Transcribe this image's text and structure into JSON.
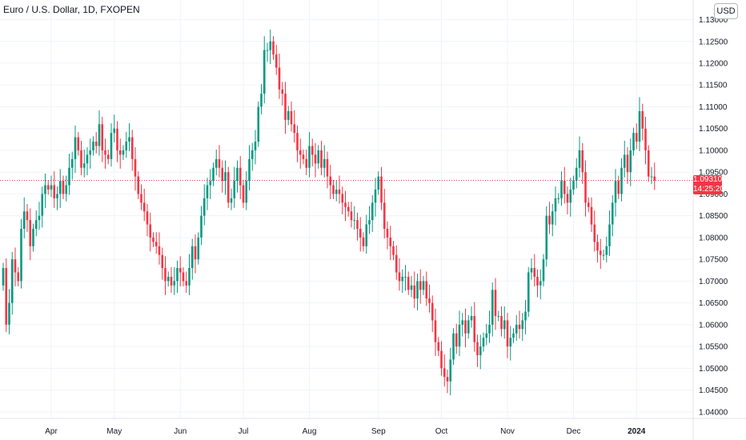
{
  "header": {
    "title": "Euro / U.S. Dollar, 1D, FXOPEN"
  },
  "currency_button": {
    "label": "USD"
  },
  "last_price": {
    "value": "1.09310",
    "countdown": "14:25:20",
    "color": "#f23645"
  },
  "colors": {
    "up": "#089981",
    "down": "#f23645",
    "grid": "#f0f3fa",
    "text": "#131722"
  },
  "chart_data": {
    "type": "candlestick",
    "title": "Euro / U.S. Dollar, 1D, FXOPEN",
    "ylim": [
      1.0385,
      1.1345
    ],
    "y_ticks": [
      "1.04000",
      "1.04500",
      "1.05000",
      "1.05500",
      "1.06000",
      "1.06500",
      "1.07000",
      "1.07500",
      "1.08000",
      "1.08500",
      "1.09000",
      "1.09500",
      "1.10000",
      "1.10500",
      "1.11000",
      "1.11500",
      "1.12000",
      "1.12500",
      "1.13000"
    ],
    "x_ticks": [
      {
        "label": "Apr",
        "day": 16
      },
      {
        "label": "May",
        "day": 37
      },
      {
        "label": "Jun",
        "day": 59
      },
      {
        "label": "Jul",
        "day": 80
      },
      {
        "label": "Aug",
        "day": 102
      },
      {
        "label": "Sep",
        "day": 125
      },
      {
        "label": "Oct",
        "day": 146
      },
      {
        "label": "Nov",
        "day": 168
      },
      {
        "label": "Dec",
        "day": 190
      },
      {
        "label": "2024",
        "day": 211
      }
    ],
    "last_close": 1.0931,
    "closes": [
      1.073,
      1.06,
      1.065,
      1.075,
      1.072,
      1.07,
      1.082,
      1.086,
      1.084,
      1.078,
      1.082,
      1.084,
      1.085,
      1.09,
      1.092,
      1.091,
      1.092,
      1.089,
      1.09,
      1.093,
      1.09,
      1.092,
      1.096,
      1.098,
      1.103,
      1.1,
      1.096,
      1.097,
      1.099,
      1.1,
      1.102,
      1.101,
      1.106,
      1.1,
      1.099,
      1.098,
      1.104,
      1.105,
      1.1,
      1.099,
      1.1,
      1.102,
      1.103,
      1.098,
      1.094,
      1.09,
      1.088,
      1.086,
      1.083,
      1.08,
      1.079,
      1.078,
      1.076,
      1.073,
      1.07,
      1.071,
      1.069,
      1.07,
      1.073,
      1.072,
      1.07,
      1.069,
      1.073,
      1.078,
      1.075,
      1.08,
      1.085,
      1.089,
      1.092,
      1.093,
      1.096,
      1.098,
      1.096,
      1.093,
      1.095,
      1.088,
      1.089,
      1.093,
      1.096,
      1.092,
      1.088,
      1.093,
      1.098,
      1.1,
      1.102,
      1.11,
      1.113,
      1.123,
      1.123,
      1.125,
      1.122,
      1.119,
      1.114,
      1.113,
      1.107,
      1.109,
      1.106,
      1.104,
      1.1,
      1.099,
      1.098,
      1.096,
      1.101,
      1.099,
      1.097,
      1.1,
      1.096,
      1.098,
      1.094,
      1.092,
      1.09,
      1.091,
      1.09,
      1.088,
      1.087,
      1.086,
      1.084,
      1.084,
      1.082,
      1.08,
      1.078,
      1.083,
      1.084,
      1.088,
      1.091,
      1.094,
      1.088,
      1.082,
      1.08,
      1.078,
      1.076,
      1.072,
      1.07,
      1.071,
      1.071,
      1.068,
      1.069,
      1.066,
      1.07,
      1.068,
      1.07,
      1.066,
      1.065,
      1.061,
      1.056,
      1.054,
      1.05,
      1.048,
      1.047,
      1.052,
      1.058,
      1.055,
      1.06,
      1.061,
      1.058,
      1.061,
      1.062,
      1.056,
      1.053,
      1.055,
      1.057,
      1.058,
      1.06,
      1.068,
      1.062,
      1.062,
      1.059,
      1.061,
      1.055,
      1.057,
      1.058,
      1.06,
      1.059,
      1.061,
      1.063,
      1.072,
      1.073,
      1.071,
      1.069,
      1.07,
      1.075,
      1.085,
      1.083,
      1.086,
      1.089,
      1.089,
      1.093,
      1.09,
      1.088,
      1.091,
      1.093,
      1.096,
      1.1,
      1.095,
      1.088,
      1.087,
      1.083,
      1.079,
      1.077,
      1.076,
      1.076,
      1.078,
      1.083,
      1.088,
      1.093,
      1.09,
      1.096,
      1.099,
      1.095,
      1.1,
      1.104,
      1.102,
      1.109,
      1.105,
      1.1,
      1.094,
      1.094,
      1.0931
    ],
    "open_first": 1.069
  }
}
